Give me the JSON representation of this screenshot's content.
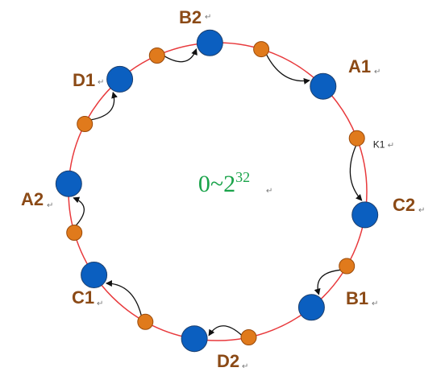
{
  "colors": {
    "ring": "#e8393c",
    "server_fill": "#0b5fc0",
    "server_stroke": "#1c3f6e",
    "key_fill": "#e07a1c",
    "key_stroke": "#9a4a0a",
    "label": "#8b4a16",
    "center_text": "#1aa34a",
    "arrow": "#111111"
  },
  "ring": {
    "range_base": "0~2",
    "range_exp": "32"
  },
  "mark_symbol": "↵",
  "servers": [
    {
      "id": "B2",
      "label": "B2",
      "angle_deg": 93
    },
    {
      "id": "A1",
      "label": "A1",
      "angle_deg": 45
    },
    {
      "id": "C2",
      "label": "C2",
      "angle_deg": -9
    },
    {
      "id": "B1",
      "label": "B1",
      "angle_deg": -51
    },
    {
      "id": "D2",
      "label": "D2",
      "angle_deg": -99
    },
    {
      "id": "C1",
      "label": "C1",
      "angle_deg": -146
    },
    {
      "id": "A2",
      "label": "A2",
      "angle_deg": 177
    },
    {
      "id": "D1",
      "label": "D1",
      "angle_deg": 131
    }
  ],
  "keys": [
    {
      "id": "k-top-left",
      "angle_deg": 114,
      "target": "B2"
    },
    {
      "id": "k-top-right",
      "angle_deg": 73,
      "target": "A1"
    },
    {
      "id": "K1",
      "label": "K1",
      "angle_deg": 21,
      "target": "C2"
    },
    {
      "id": "k-right-low",
      "angle_deg": -30,
      "target": "B1"
    },
    {
      "id": "k-bottom-right",
      "angle_deg": -78,
      "target": "D2"
    },
    {
      "id": "k-bottom-left",
      "angle_deg": -119,
      "target": "C1"
    },
    {
      "id": "k-left-low",
      "angle_deg": -164,
      "target": "A2"
    },
    {
      "id": "k-left-up",
      "angle_deg": 153,
      "target": "D1"
    }
  ]
}
